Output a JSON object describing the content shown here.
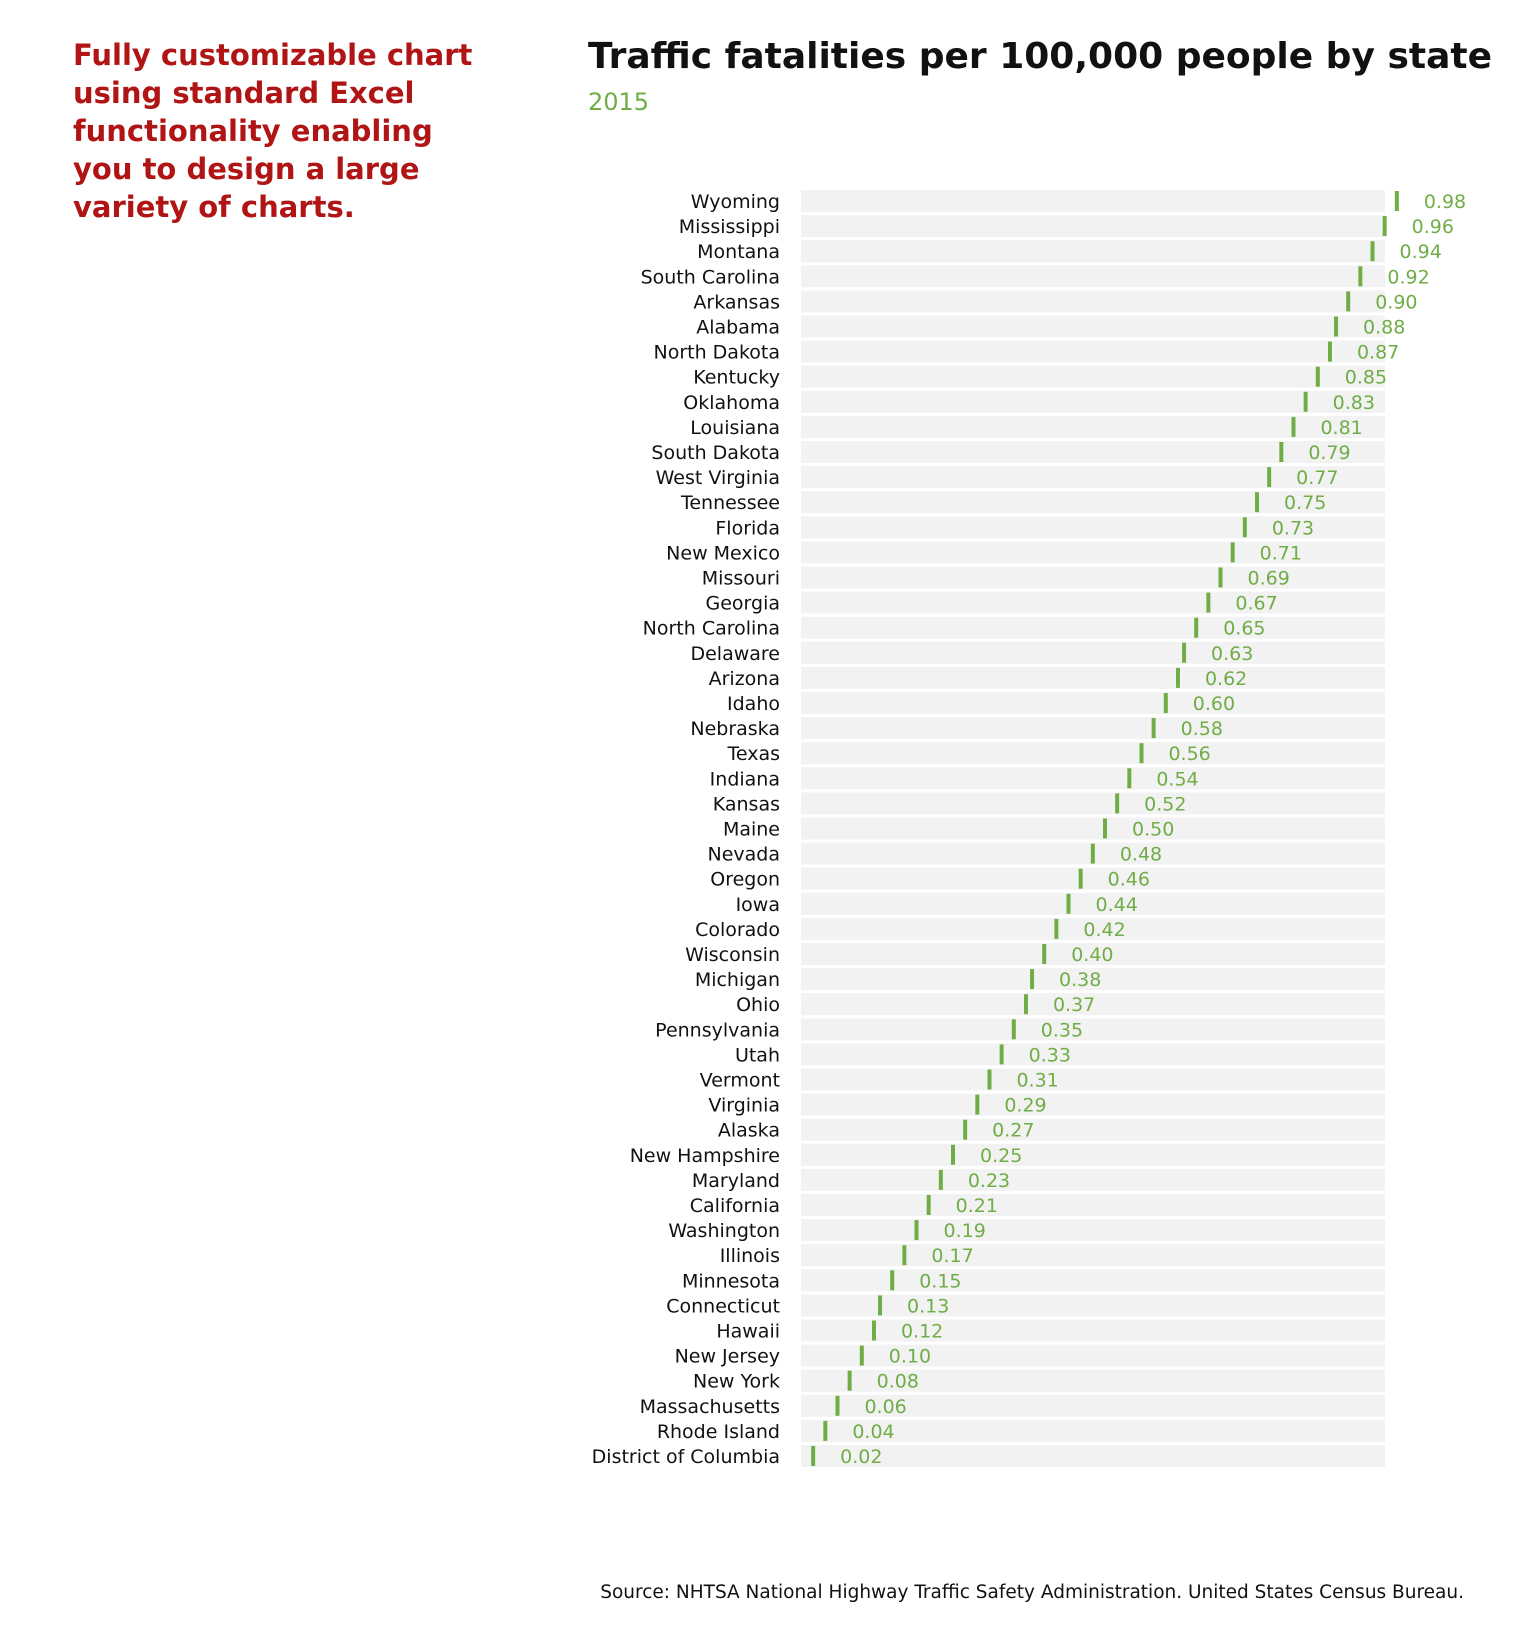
{
  "promo_text": "Fully customizable chart using standard Excel functionality enabling you to design a large variety of charts.",
  "source": "Source: NHTSA National Highway Traffic Safety Administration. United States Census Bureau.",
  "colors": {
    "promo": "#b01414",
    "accent": "#70ad47",
    "track": "#f2f2f2",
    "text": "#111111"
  },
  "chart_data": {
    "type": "bar",
    "title": "Traffic fatalities per 100,000 people by state",
    "subtitle": "2015",
    "xlim": [
      0,
      1
    ],
    "grid": false,
    "categories": [
      "Wyoming",
      "Mississippi",
      "Montana",
      "South Carolina",
      "Arkansas",
      "Alabama",
      "North Dakota",
      "Kentucky",
      "Oklahoma",
      "Louisiana",
      "South Dakota",
      "West Virginia",
      "Tennessee",
      "Florida",
      "New Mexico",
      "Missouri",
      "Georgia",
      "North Carolina",
      "Delaware",
      "Arizona",
      "Idaho",
      "Nebraska",
      "Texas",
      "Indiana",
      "Kansas",
      "Maine",
      "Nevada",
      "Oregon",
      "Iowa",
      "Colorado",
      "Wisconsin",
      "Michigan",
      "Ohio",
      "Pennsylvania",
      "Utah",
      "Vermont",
      "Virginia",
      "Alaska",
      "New Hampshire",
      "Maryland",
      "California",
      "Washington",
      "Illinois",
      "Minnesota",
      "Connecticut",
      "Hawaii",
      "New Jersey",
      "New York",
      "Massachusetts",
      "Rhode Island",
      "District of Columbia"
    ],
    "values": [
      0.98,
      0.96,
      0.94,
      0.92,
      0.9,
      0.88,
      0.87,
      0.85,
      0.83,
      0.81,
      0.79,
      0.77,
      0.75,
      0.73,
      0.71,
      0.69,
      0.67,
      0.65,
      0.63,
      0.62,
      0.6,
      0.58,
      0.56,
      0.54,
      0.52,
      0.5,
      0.48,
      0.46,
      0.44,
      0.42,
      0.4,
      0.38,
      0.37,
      0.35,
      0.33,
      0.31,
      0.29,
      0.27,
      0.25,
      0.23,
      0.21,
      0.19,
      0.17,
      0.15,
      0.13,
      0.12,
      0.1,
      0.08,
      0.06,
      0.04,
      0.02
    ],
    "value_labels": [
      "0.98",
      "0.96",
      "0.94",
      "0.92",
      "0.90",
      "0.88",
      "0.87",
      "0.85",
      "0.83",
      "0.81",
      "0.79",
      "0.77",
      "0.75",
      "0.73",
      "0.71",
      "0.69",
      "0.67",
      "0.65",
      "0.63",
      "0.62",
      "0.60",
      "0.58",
      "0.56",
      "0.54",
      "0.52",
      "0.50",
      "0.48",
      "0.46",
      "0.44",
      "0.42",
      "0.40",
      "0.38",
      "0.37",
      "0.35",
      "0.33",
      "0.31",
      "0.29",
      "0.27",
      "0.25",
      "0.23",
      "0.21",
      "0.19",
      "0.17",
      "0.15",
      "0.13",
      "0.12",
      "0.10",
      "0.08",
      "0.06",
      "0.04",
      "0.02"
    ]
  }
}
